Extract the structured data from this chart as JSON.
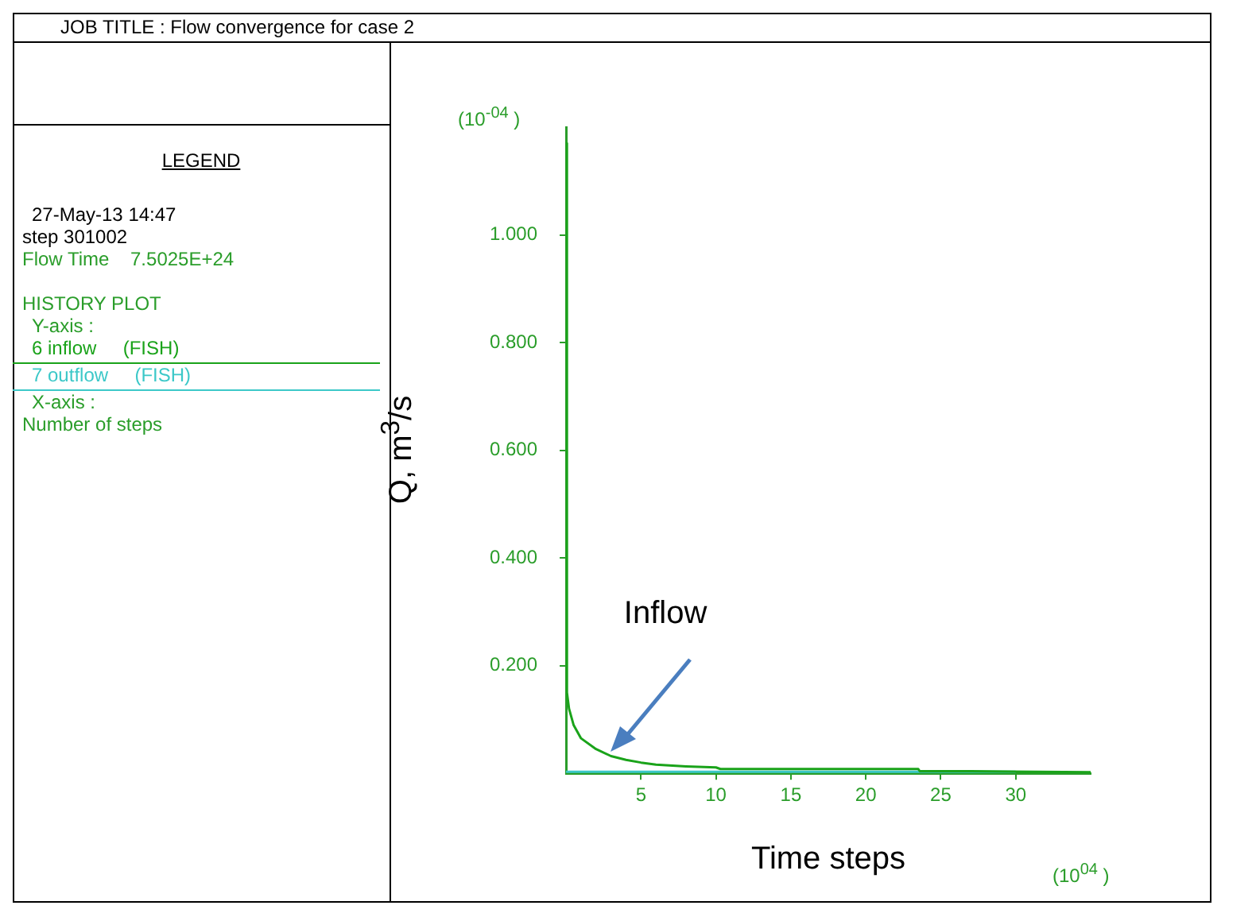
{
  "chart_data": {
    "type": "line",
    "title": "JOB TITLE : Flow convergence for case 2",
    "xlabel": "Time steps",
    "ylabel": "Q, m$^{3}$/s",
    "legend": "left",
    "grid": false,
    "marker": "none",
    "line_style": "solid",
    "xlim": [
      0,
      35
    ],
    "xticks": [
      5,
      10,
      15,
      20,
      25,
      30
    ],
    "ylim": [
      0,
      1.2
    ],
    "yticks": [
      {
        "value": 0.2,
        "label": "0.200"
      },
      {
        "value": 0.4,
        "label": "0.400"
      },
      {
        "value": 0.6,
        "label": "0.600"
      },
      {
        "value": 0.8,
        "label": "0.800"
      },
      {
        "value": 1.0,
        "label": "1.000"
      }
    ],
    "series": [
      {
        "name": "6 inflow     (FISH)",
        "color": "#1aa31a",
        "x": [
          0,
          0.06,
          0.2,
          0.5,
          1,
          2,
          3,
          4,
          5,
          6,
          8,
          10,
          10.3,
          15,
          20,
          23.5,
          23.6,
          27,
          35
        ],
        "values": [
          1.17,
          0.15,
          0.12,
          0.09,
          0.065,
          0.045,
          0.032,
          0.025,
          0.02,
          0.016,
          0.013,
          0.011,
          0.008,
          0.008,
          0.008,
          0.008,
          0.004,
          0.004,
          0.002
        ]
      },
      {
        "name": "7 outflow     (FISH)",
        "color": "#3cc8c8",
        "x": [
          0,
          30
        ],
        "values": [
          0.003,
          0.003
        ]
      }
    ],
    "annotations": [
      "(10$^{-04}$ )",
      "(10$^{04}$ )",
      "LEGEND",
      "27-May-13 14:47",
      "step 301002",
      "Flow Time    7.5025E+24",
      "HISTORY PLOT",
      "Y-axis :",
      "X-axis :",
      "Number of steps",
      "Inflow"
    ]
  }
}
